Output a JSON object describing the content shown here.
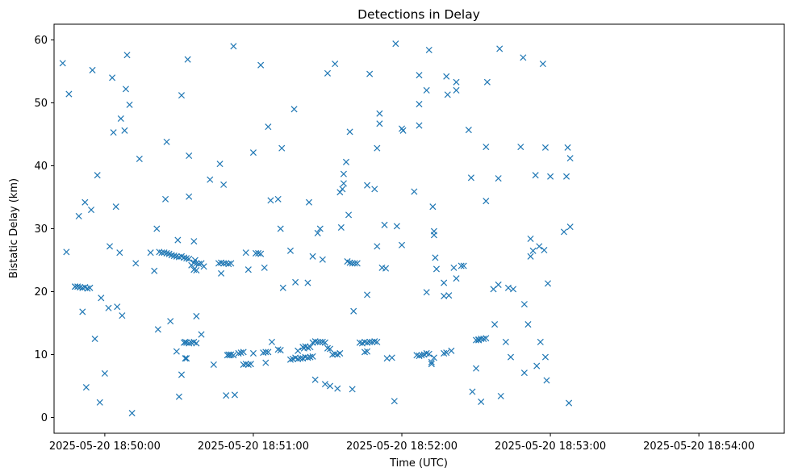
{
  "chart_data": {
    "type": "scatter",
    "title": "Detections in Delay",
    "xlabel": "Time (UTC)",
    "ylabel": "Bistatic Delay (km)",
    "x_unit": "seconds after 2025-05-20 18:49:00",
    "x_ticks": [
      {
        "t": 60,
        "label": "2025-05-20 18:50:00"
      },
      {
        "t": 120,
        "label": "2025-05-20 18:51:00"
      },
      {
        "t": 180,
        "label": "2025-05-20 18:52:00"
      },
      {
        "t": 240,
        "label": "2025-05-20 18:53:00"
      },
      {
        "t": 300,
        "label": "2025-05-20 18:54:00"
      }
    ],
    "y_ticks": [
      0,
      10,
      20,
      30,
      40,
      50,
      60
    ],
    "xlim": [
      39.5,
      334.5
    ],
    "ylim": [
      -2.5,
      62.5
    ],
    "grid": false,
    "legend": "none",
    "marker": "x",
    "color": "#1f77b4",
    "points": [
      [
        43,
        56.3
      ],
      [
        44.5,
        26.3
      ],
      [
        45.5,
        51.4
      ],
      [
        48,
        20.8
      ],
      [
        49.5,
        32
      ],
      [
        51,
        16.8
      ],
      [
        52,
        34.2
      ],
      [
        52.5,
        4.8
      ],
      [
        54.5,
        33
      ],
      [
        55,
        55.2
      ],
      [
        56,
        12.5
      ],
      [
        57,
        38.5
      ],
      [
        58,
        2.4
      ],
      [
        58.5,
        19
      ],
      [
        60,
        7
      ],
      [
        61.5,
        17.4
      ],
      [
        62,
        27.2
      ],
      [
        63,
        54
      ],
      [
        63.5,
        45.3
      ],
      [
        64.5,
        33.5
      ],
      [
        65,
        17.6
      ],
      [
        66,
        26.2
      ],
      [
        66.5,
        47.5
      ],
      [
        67,
        16.2
      ],
      [
        68,
        45.6
      ],
      [
        68.5,
        52.2
      ],
      [
        69,
        57.6
      ],
      [
        70,
        49.7
      ],
      [
        71,
        0.7
      ],
      [
        72.5,
        24.5
      ],
      [
        74,
        41.1
      ],
      [
        78.5,
        26.2
      ],
      [
        80,
        23.3
      ],
      [
        81,
        30
      ],
      [
        81.5,
        14
      ],
      [
        84.5,
        34.7
      ],
      [
        85,
        43.8
      ],
      [
        86.5,
        15.3
      ],
      [
        89,
        10.5
      ],
      [
        89.5,
        28.2
      ],
      [
        90,
        3.3
      ],
      [
        91,
        6.8
      ],
      [
        91,
        51.2
      ],
      [
        92.5,
        12
      ],
      [
        93.5,
        56.9
      ],
      [
        94,
        41.6
      ],
      [
        94,
        35.1
      ],
      [
        96,
        28
      ],
      [
        97,
        16.1
      ],
      [
        99,
        13.2
      ],
      [
        102.5,
        37.8
      ],
      [
        104,
        8.4
      ],
      [
        106.5,
        40.3
      ],
      [
        107,
        22.9
      ],
      [
        108,
        37
      ],
      [
        109,
        3.5
      ],
      [
        110,
        10
      ],
      [
        112,
        59
      ],
      [
        112.5,
        3.6
      ],
      [
        116,
        8.4
      ],
      [
        117,
        26.2
      ],
      [
        118,
        23.5
      ],
      [
        120,
        42.1
      ],
      [
        123,
        56
      ],
      [
        124.5,
        23.8
      ],
      [
        125,
        8.7
      ],
      [
        126,
        46.2
      ],
      [
        127,
        34.5
      ],
      [
        127.5,
        12
      ],
      [
        130,
        34.7
      ],
      [
        131,
        30
      ],
      [
        131.5,
        42.8
      ],
      [
        132,
        20.6
      ],
      [
        135,
        26.5
      ],
      [
        136.5,
        49
      ],
      [
        137,
        21.5
      ],
      [
        138,
        10.6
      ],
      [
        140.5,
        11
      ],
      [
        142,
        21.4
      ],
      [
        142.5,
        34.2
      ],
      [
        144,
        25.6
      ],
      [
        145,
        6
      ],
      [
        146,
        29.3
      ],
      [
        147,
        30
      ],
      [
        148,
        25.1
      ],
      [
        149,
        5.3
      ],
      [
        150,
        54.7
      ],
      [
        151,
        5
      ],
      [
        153,
        56.2
      ],
      [
        154,
        4.6
      ],
      [
        155,
        35.8
      ],
      [
        155.5,
        30.2
      ],
      [
        156,
        36.3
      ],
      [
        156.5,
        38.7
      ],
      [
        156.5,
        37.2
      ],
      [
        157.5,
        40.6
      ],
      [
        158.5,
        32.2
      ],
      [
        159,
        45.4
      ],
      [
        160,
        4.5
      ],
      [
        160.5,
        16.9
      ],
      [
        166,
        19.5
      ],
      [
        166,
        36.9
      ],
      [
        167,
        54.6
      ],
      [
        169,
        36.3
      ],
      [
        170,
        27.2
      ],
      [
        170,
        42.8
      ],
      [
        171,
        46.7
      ],
      [
        171,
        48.3
      ],
      [
        172,
        23.8
      ],
      [
        173,
        30.6
      ],
      [
        173.5,
        23.7
      ],
      [
        174,
        9.4
      ],
      [
        176,
        9.5
      ],
      [
        177,
        2.6
      ],
      [
        177.5,
        59.4
      ],
      [
        178,
        30.4
      ],
      [
        180,
        27.4
      ],
      [
        180,
        45.9
      ],
      [
        180.5,
        45.6
      ],
      [
        185,
        35.9
      ],
      [
        187,
        46.4
      ],
      [
        187,
        49.8
      ],
      [
        187,
        54.4
      ],
      [
        190,
        19.9
      ],
      [
        190,
        52
      ],
      [
        191,
        58.4
      ],
      [
        192,
        8.5
      ],
      [
        192.5,
        33.5
      ],
      [
        193,
        29.6
      ],
      [
        193,
        29
      ],
      [
        193.5,
        25.4
      ],
      [
        194,
        23.6
      ],
      [
        197,
        21.4
      ],
      [
        197,
        19.3
      ],
      [
        198,
        54.2
      ],
      [
        198.5,
        51.3
      ],
      [
        199,
        19.4
      ],
      [
        200,
        10.6
      ],
      [
        201,
        23.8
      ],
      [
        202,
        22.1
      ],
      [
        202,
        53.3
      ],
      [
        202,
        52
      ],
      [
        204,
        24.1
      ],
      [
        205,
        24.1
      ],
      [
        207,
        45.7
      ],
      [
        208,
        38.1
      ],
      [
        208.5,
        4.1
      ],
      [
        210,
        7.8
      ],
      [
        211,
        12.3
      ],
      [
        212,
        2.5
      ],
      [
        214,
        34.4
      ],
      [
        214,
        43
      ],
      [
        214.5,
        53.3
      ],
      [
        217,
        20.4
      ],
      [
        217.5,
        14.8
      ],
      [
        219,
        21.1
      ],
      [
        219,
        38
      ],
      [
        219.5,
        58.6
      ],
      [
        220,
        3.4
      ],
      [
        222,
        12
      ],
      [
        223,
        20.6
      ],
      [
        224,
        9.6
      ],
      [
        225,
        20.4
      ],
      [
        228,
        43
      ],
      [
        229,
        57.2
      ],
      [
        229.5,
        7.1
      ],
      [
        229.5,
        18
      ],
      [
        231,
        14.8
      ],
      [
        232,
        25.6
      ],
      [
        232,
        28.4
      ],
      [
        233,
        26.5
      ],
      [
        234,
        38.5
      ],
      [
        234.5,
        8.2
      ],
      [
        235.5,
        27.2
      ],
      [
        236,
        12
      ],
      [
        237,
        56.2
      ],
      [
        237.5,
        26.6
      ],
      [
        238,
        9.6
      ],
      [
        238,
        42.9
      ],
      [
        238.5,
        5.9
      ],
      [
        239,
        21.3
      ],
      [
        240,
        38.3
      ],
      [
        245.5,
        29.5
      ],
      [
        246.5,
        38.3
      ],
      [
        247,
        42.9
      ],
      [
        247.5,
        2.3
      ],
      [
        248,
        30.3
      ],
      [
        248,
        41.2
      ],
      [
        48,
        20.8
      ],
      [
        49,
        20.8
      ],
      [
        50,
        20.7
      ],
      [
        51,
        20.6
      ],
      [
        52,
        20.7
      ],
      [
        53,
        20.5
      ],
      [
        54,
        20.6
      ],
      [
        82,
        26.3
      ],
      [
        83,
        26.2
      ],
      [
        84,
        26.2
      ],
      [
        85,
        26.1
      ],
      [
        86,
        26
      ],
      [
        87,
        25.8
      ],
      [
        88,
        25.7
      ],
      [
        89,
        25.6
      ],
      [
        90,
        25.5
      ],
      [
        91,
        25.6
      ],
      [
        92,
        25.4
      ],
      [
        93,
        25.3
      ],
      [
        94,
        25.2
      ],
      [
        96,
        24.6
      ],
      [
        97,
        24.5
      ],
      [
        98,
        24.4
      ],
      [
        99,
        24.5
      ],
      [
        100,
        24
      ],
      [
        96,
        23.5
      ],
      [
        97,
        23.4
      ],
      [
        96.5,
        25
      ],
      [
        95,
        24.2
      ],
      [
        92,
        11.9
      ],
      [
        93,
        11.9
      ],
      [
        94,
        11.8
      ],
      [
        95,
        11.9
      ],
      [
        96,
        12
      ],
      [
        97,
        11.8
      ],
      [
        92.5,
        9.4
      ],
      [
        93,
        9.4
      ],
      [
        106,
        24.5
      ],
      [
        107,
        24.6
      ],
      [
        108,
        24.5
      ],
      [
        109,
        24.5
      ],
      [
        110,
        24.4
      ],
      [
        111,
        24.5
      ],
      [
        109.5,
        9.9
      ],
      [
        110.5,
        9.9
      ],
      [
        111,
        10
      ],
      [
        112,
        9.9
      ],
      [
        114,
        10.2
      ],
      [
        115,
        10.3
      ],
      [
        116,
        10.4
      ],
      [
        117,
        8.5
      ],
      [
        118,
        8.4
      ],
      [
        119,
        8.5
      ],
      [
        120,
        10.2
      ],
      [
        121,
        26.1
      ],
      [
        122,
        26.1
      ],
      [
        123,
        26
      ],
      [
        124,
        10.3
      ],
      [
        125,
        10.4
      ],
      [
        126,
        10.4
      ],
      [
        130,
        10.8
      ],
      [
        131,
        10.7
      ],
      [
        135,
        9.2
      ],
      [
        136,
        9.3
      ],
      [
        137,
        9.5
      ],
      [
        138,
        9.3
      ],
      [
        139,
        9.4
      ],
      [
        140,
        9.4
      ],
      [
        141,
        9.6
      ],
      [
        142,
        9.5
      ],
      [
        143,
        9.6
      ],
      [
        144,
        9.7
      ],
      [
        140,
        11.2
      ],
      [
        141,
        11.3
      ],
      [
        142,
        11.1
      ],
      [
        143,
        11.2
      ],
      [
        144,
        11.9
      ],
      [
        145,
        12.1
      ],
      [
        146,
        12
      ],
      [
        147,
        12
      ],
      [
        148,
        12
      ],
      [
        149,
        11.9
      ],
      [
        150,
        11
      ],
      [
        151,
        10.9
      ],
      [
        152,
        10
      ],
      [
        153,
        10.1
      ],
      [
        154,
        10
      ],
      [
        155,
        10.2
      ],
      [
        158,
        24.8
      ],
      [
        159,
        24.6
      ],
      [
        160,
        24.5
      ],
      [
        161,
        24.5
      ],
      [
        162,
        24.5
      ],
      [
        163,
        11.9
      ],
      [
        164,
        11.8
      ],
      [
        165,
        12
      ],
      [
        166,
        11.9
      ],
      [
        167,
        12
      ],
      [
        168,
        12
      ],
      [
        169,
        12.1
      ],
      [
        170,
        12
      ],
      [
        165,
        10.4
      ],
      [
        166,
        10.5
      ],
      [
        186,
        9.9
      ],
      [
        187,
        9.8
      ],
      [
        188,
        9.9
      ],
      [
        189,
        10
      ],
      [
        190,
        10.2
      ],
      [
        191,
        10.1
      ],
      [
        192,
        8.8
      ],
      [
        193,
        9.5
      ],
      [
        197,
        10.2
      ],
      [
        198,
        10.3
      ],
      [
        210,
        12.3
      ],
      [
        211,
        12.4
      ],
      [
        212,
        12.5
      ],
      [
        213,
        12.5
      ],
      [
        214,
        12.6
      ]
    ]
  }
}
